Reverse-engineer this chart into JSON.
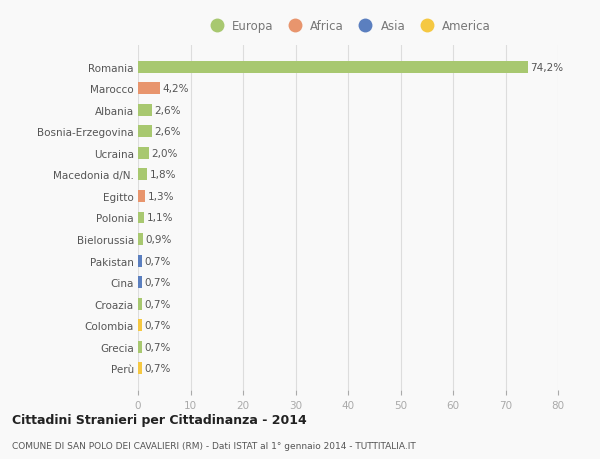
{
  "categories": [
    "Romania",
    "Marocco",
    "Albania",
    "Bosnia-Erzegovina",
    "Ucraina",
    "Macedonia d/N.",
    "Egitto",
    "Polonia",
    "Bielorussia",
    "Pakistan",
    "Cina",
    "Croazia",
    "Colombia",
    "Grecia",
    "Perù"
  ],
  "values": [
    74.2,
    4.2,
    2.6,
    2.6,
    2.0,
    1.8,
    1.3,
    1.1,
    0.9,
    0.7,
    0.7,
    0.7,
    0.7,
    0.7,
    0.7
  ],
  "labels": [
    "74,2%",
    "4,2%",
    "2,6%",
    "2,6%",
    "2,0%",
    "1,8%",
    "1,3%",
    "1,1%",
    "0,9%",
    "0,7%",
    "0,7%",
    "0,7%",
    "0,7%",
    "0,7%",
    "0,7%"
  ],
  "colors": [
    "#a8c870",
    "#e8956d",
    "#a8c870",
    "#a8c870",
    "#a8c870",
    "#a8c870",
    "#e8956d",
    "#a8c870",
    "#a8c870",
    "#5b7fbf",
    "#5b7fbf",
    "#a8c870",
    "#f5c842",
    "#a8c870",
    "#f5c842"
  ],
  "legend_labels": [
    "Europa",
    "Africa",
    "Asia",
    "America"
  ],
  "legend_colors": [
    "#a8c870",
    "#e8956d",
    "#5b7fbf",
    "#f5c842"
  ],
  "title": "Cittadini Stranieri per Cittadinanza - 2014",
  "subtitle": "COMUNE DI SAN POLO DEI CAVALIERI (RM) - Dati ISTAT al 1° gennaio 2014 - TUTTITALIA.IT",
  "xlim": [
    0,
    80
  ],
  "xticks": [
    0,
    10,
    20,
    30,
    40,
    50,
    60,
    70,
    80
  ],
  "bg_color": "#f9f9f9",
  "grid_color": "#dddddd",
  "bar_height": 0.55
}
